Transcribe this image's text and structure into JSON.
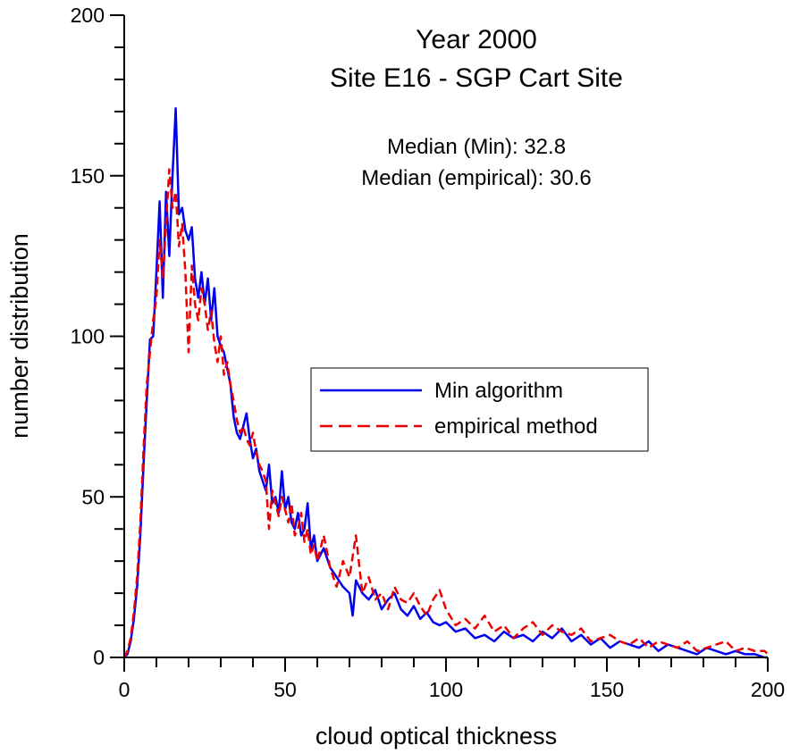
{
  "chart_data": {
    "type": "line",
    "title": "Year 2000",
    "subtitle": "Site E16 - SGP Cart Site",
    "annotations": [
      "Median (Min): 32.8",
      "Median (empirical): 30.6"
    ],
    "xlabel": "cloud optical thickness",
    "ylabel": "number distribution",
    "xlim": [
      0,
      200
    ],
    "ylim": [
      0,
      200
    ],
    "xticks": [
      0,
      50,
      100,
      150,
      200
    ],
    "yticks": [
      0,
      50,
      100,
      150,
      200
    ],
    "grid": false,
    "legend": "center-right",
    "series": [
      {
        "name": "Min algorithm",
        "color": "#0000ee",
        "style": "solid",
        "x": [
          0,
          1,
          2,
          3,
          4,
          5,
          6,
          7,
          8,
          9,
          10,
          11,
          12,
          13,
          14,
          15,
          16,
          17,
          18,
          19,
          20,
          21,
          22,
          23,
          24,
          25,
          26,
          27,
          28,
          29,
          30,
          31,
          32,
          33,
          34,
          35,
          36,
          37,
          38,
          39,
          40,
          41,
          42,
          43,
          44,
          45,
          46,
          47,
          48,
          49,
          50,
          51,
          52,
          53,
          54,
          55,
          56,
          57,
          58,
          59,
          60,
          62,
          64,
          66,
          68,
          70,
          71,
          72,
          74,
          76,
          78,
          80,
          82,
          84,
          86,
          88,
          90,
          92,
          94,
          96,
          98,
          100,
          103,
          106,
          109,
          112,
          115,
          118,
          121,
          124,
          127,
          130,
          133,
          136,
          139,
          142,
          145,
          148,
          151,
          154,
          157,
          160,
          163,
          166,
          169,
          172,
          175,
          178,
          181,
          184,
          187,
          190,
          193,
          196,
          199,
          200
        ],
        "values": [
          0,
          1,
          5,
          12,
          22,
          38,
          60,
          80,
          99,
          100,
          120,
          142,
          112,
          145,
          125,
          150,
          171,
          138,
          140,
          133,
          130,
          134,
          118,
          112,
          120,
          110,
          118,
          105,
          115,
          100,
          97,
          95,
          90,
          85,
          75,
          70,
          68,
          72,
          76,
          68,
          62,
          65,
          58,
          55,
          52,
          60,
          48,
          50,
          45,
          58,
          46,
          50,
          42,
          40,
          45,
          38,
          40,
          48,
          34,
          38,
          30,
          34,
          28,
          25,
          22,
          20,
          13,
          24,
          20,
          18,
          21,
          15,
          18,
          20,
          15,
          13,
          16,
          12,
          14,
          11,
          10,
          11,
          8,
          9,
          6,
          7,
          5,
          8,
          6,
          7,
          5,
          8,
          6,
          9,
          5,
          7,
          4,
          6,
          3,
          5,
          4,
          3,
          5,
          2,
          4,
          3,
          2,
          1,
          3,
          2,
          1,
          2,
          1,
          1,
          0,
          0
        ]
      },
      {
        "name": "empirical method",
        "color": "#ee0000",
        "style": "dashed",
        "x": [
          0,
          1,
          2,
          3,
          4,
          5,
          6,
          7,
          8,
          9,
          10,
          11,
          12,
          13,
          14,
          15,
          16,
          17,
          18,
          19,
          20,
          21,
          22,
          23,
          24,
          25,
          26,
          27,
          28,
          29,
          30,
          31,
          32,
          33,
          34,
          35,
          36,
          37,
          38,
          39,
          40,
          41,
          42,
          43,
          44,
          45,
          46,
          47,
          48,
          49,
          50,
          51,
          52,
          53,
          54,
          55,
          56,
          57,
          58,
          59,
          60,
          62,
          64,
          66,
          68,
          70,
          72,
          74,
          76,
          78,
          80,
          82,
          84,
          86,
          88,
          90,
          92,
          94,
          96,
          98,
          100,
          103,
          106,
          109,
          112,
          115,
          118,
          121,
          124,
          127,
          130,
          133,
          136,
          139,
          142,
          145,
          148,
          151,
          154,
          157,
          160,
          163,
          166,
          169,
          172,
          175,
          178,
          181,
          184,
          187,
          190,
          193,
          196,
          199,
          200
        ],
        "values": [
          0,
          2,
          6,
          14,
          25,
          42,
          65,
          85,
          95,
          105,
          112,
          130,
          118,
          135,
          152,
          140,
          145,
          128,
          135,
          120,
          95,
          122,
          110,
          105,
          115,
          110,
          102,
          108,
          98,
          92,
          100,
          88,
          92,
          85,
          80,
          74,
          70,
          72,
          68,
          66,
          70,
          64,
          60,
          58,
          55,
          40,
          52,
          48,
          44,
          50,
          46,
          42,
          48,
          38,
          40,
          45,
          36,
          40,
          32,
          35,
          30,
          38,
          28,
          22,
          30,
          25,
          38,
          20,
          25,
          18,
          20,
          15,
          22,
          18,
          17,
          20,
          16,
          13,
          18,
          21,
          15,
          10,
          12,
          9,
          13,
          8,
          10,
          6,
          9,
          11,
          7,
          10,
          8,
          7,
          9,
          5,
          6,
          7,
          5,
          4,
          6,
          3,
          5,
          4,
          3,
          5,
          2,
          3,
          4,
          5,
          2,
          3,
          2,
          2,
          1
        ]
      }
    ]
  }
}
